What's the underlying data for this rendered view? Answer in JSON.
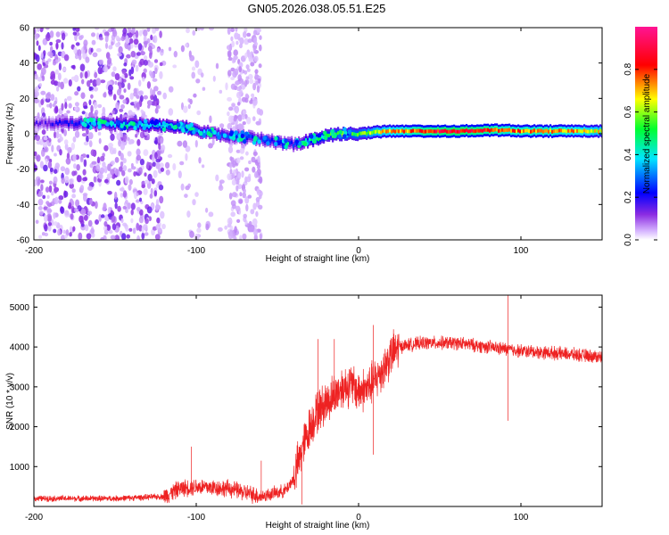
{
  "title": "GN05.2026.038.05.51.E25",
  "chart_data": [
    {
      "type": "heatmap",
      "name": "spectrogram",
      "xlabel": "Height of straight line (km)",
      "ylabel": "Frequency (Hz)",
      "xlim": [
        -200,
        150
      ],
      "ylim": [
        -60,
        60
      ],
      "xticks": [
        -200,
        -100,
        0,
        100
      ],
      "yticks": [
        -60,
        -40,
        -20,
        0,
        20,
        40,
        60
      ],
      "colorbar": {
        "label": "Normalized spectral amplitude",
        "range": [
          0,
          1
        ],
        "ticks": [
          0.0,
          0.2,
          0.4,
          0.6,
          0.8
        ],
        "colors": [
          "#ffffff",
          "#8a2be2",
          "#0000ff",
          "#00e5ff",
          "#00ff00",
          "#ffff00",
          "#ff0000",
          "#ff1493"
        ]
      },
      "ridge": {
        "x": [
          -200,
          -165,
          -150,
          -130,
          -110,
          -100,
          -90,
          -80,
          -70,
          -60,
          -50,
          -40,
          -30,
          -20,
          -10,
          0,
          10,
          20,
          40,
          60,
          80,
          90,
          100,
          120,
          150
        ],
        "y": [
          6,
          6,
          5.5,
          5,
          4,
          2,
          0,
          -1,
          -2,
          -3,
          -5,
          -6,
          -4,
          -1,
          0,
          0,
          1,
          1.5,
          1.5,
          1.5,
          2,
          2,
          1.5,
          1.5,
          1.5
        ],
        "amplitude": [
          0.15,
          0.35,
          0.4,
          0.45,
          0.45,
          0.4,
          0.35,
          0.35,
          0.3,
          0.3,
          0.3,
          0.3,
          0.5,
          0.55,
          0.6,
          0.6,
          0.7,
          0.75,
          0.85,
          0.9,
          0.85,
          0.8,
          0.8,
          0.8,
          0.7
        ]
      },
      "noise_regions": [
        {
          "x_range": [
            -200,
            -120
          ],
          "intensity": "high"
        },
        {
          "x_range": [
            -120,
            -60
          ],
          "intensity": "low"
        },
        {
          "x_range": [
            -80,
            -60
          ],
          "intensity": "medium"
        }
      ]
    },
    {
      "type": "line",
      "name": "snr",
      "xlabel": "Height of straight line (km)",
      "ylabel": "SNR (10 * v/v)",
      "xlim": [
        -200,
        150
      ],
      "ylim": [
        0,
        5300
      ],
      "xticks": [
        -200,
        -100,
        0,
        100
      ],
      "yticks": [
        1000,
        2000,
        3000,
        4000,
        5000
      ],
      "color": "#ee2222",
      "envelope": {
        "x": [
          -200,
          -150,
          -120,
          -110,
          -100,
          -80,
          -60,
          -45,
          -40,
          -35,
          -30,
          -25,
          -20,
          -15,
          -10,
          -5,
          0,
          5,
          10,
          15,
          20,
          25,
          30,
          40,
          60,
          80,
          90,
          100,
          120,
          150
        ],
        "y": [
          200,
          200,
          250,
          450,
          500,
          450,
          250,
          400,
          700,
          1400,
          2000,
          2400,
          2600,
          2800,
          3000,
          3050,
          2900,
          2950,
          3150,
          3450,
          3800,
          4000,
          4050,
          4100,
          4100,
          4000,
          3950,
          3900,
          3850,
          3750
        ]
      },
      "spikes": [
        {
          "x": 92,
          "y": 5300
        },
        {
          "x": 92,
          "y": 2150
        },
        {
          "x": -25,
          "y": 4200
        },
        {
          "x": -15,
          "y": 4200
        },
        {
          "x": 9,
          "y": 4550
        },
        {
          "x": 9,
          "y": 1300
        },
        {
          "x": -103,
          "y": 1500
        },
        {
          "x": -60,
          "y": 1150
        },
        {
          "x": -35,
          "y": 50
        }
      ]
    }
  ]
}
